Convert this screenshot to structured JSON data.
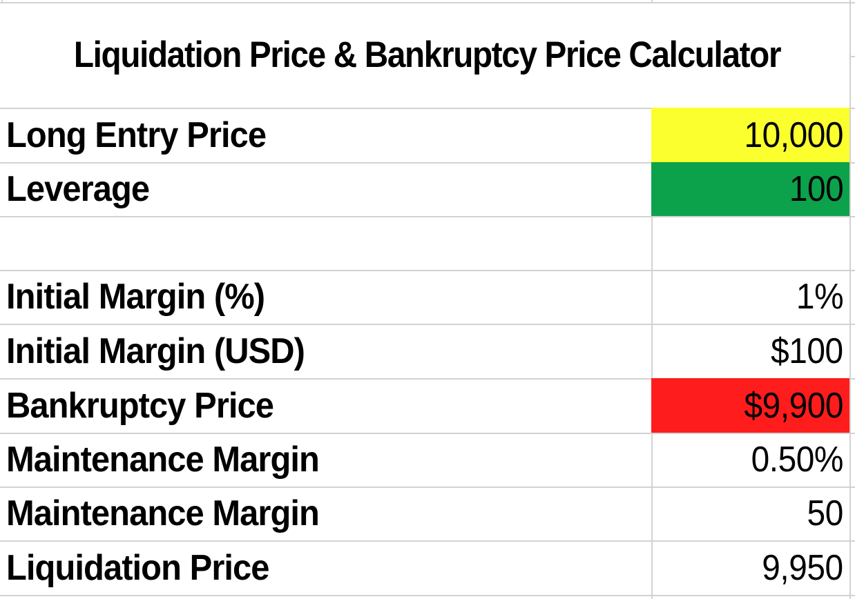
{
  "title": "Liquidation Price & Bankruptcy Price Calculator",
  "colors": {
    "yellow": "#FBFF2E",
    "green": "#0CA24C",
    "red": "#FE1C1C",
    "gridline": "#D2D2D2",
    "text": "#000000",
    "background": "#FFFFFF"
  },
  "rows": [
    {
      "label": "Long Entry Price",
      "value": "10,000",
      "fill": "yellow"
    },
    {
      "label": "Leverage",
      "value": "100",
      "fill": "green"
    },
    {
      "label": "",
      "value": "",
      "fill": "none"
    },
    {
      "label": "Initial Margin (%)",
      "value": "1%",
      "fill": "none"
    },
    {
      "label": "Initial Margin (USD)",
      "value": "$100",
      "fill": "none"
    },
    {
      "label": "Bankruptcy Price",
      "value": "$9,900",
      "fill": "red"
    },
    {
      "label": "Maintenance Margin",
      "value": "0.50%",
      "fill": "none"
    },
    {
      "label": "Maintenance Margin",
      "value": "50",
      "fill": "none"
    },
    {
      "label": "Liquidation Price",
      "value": "9,950",
      "fill": "none"
    }
  ]
}
